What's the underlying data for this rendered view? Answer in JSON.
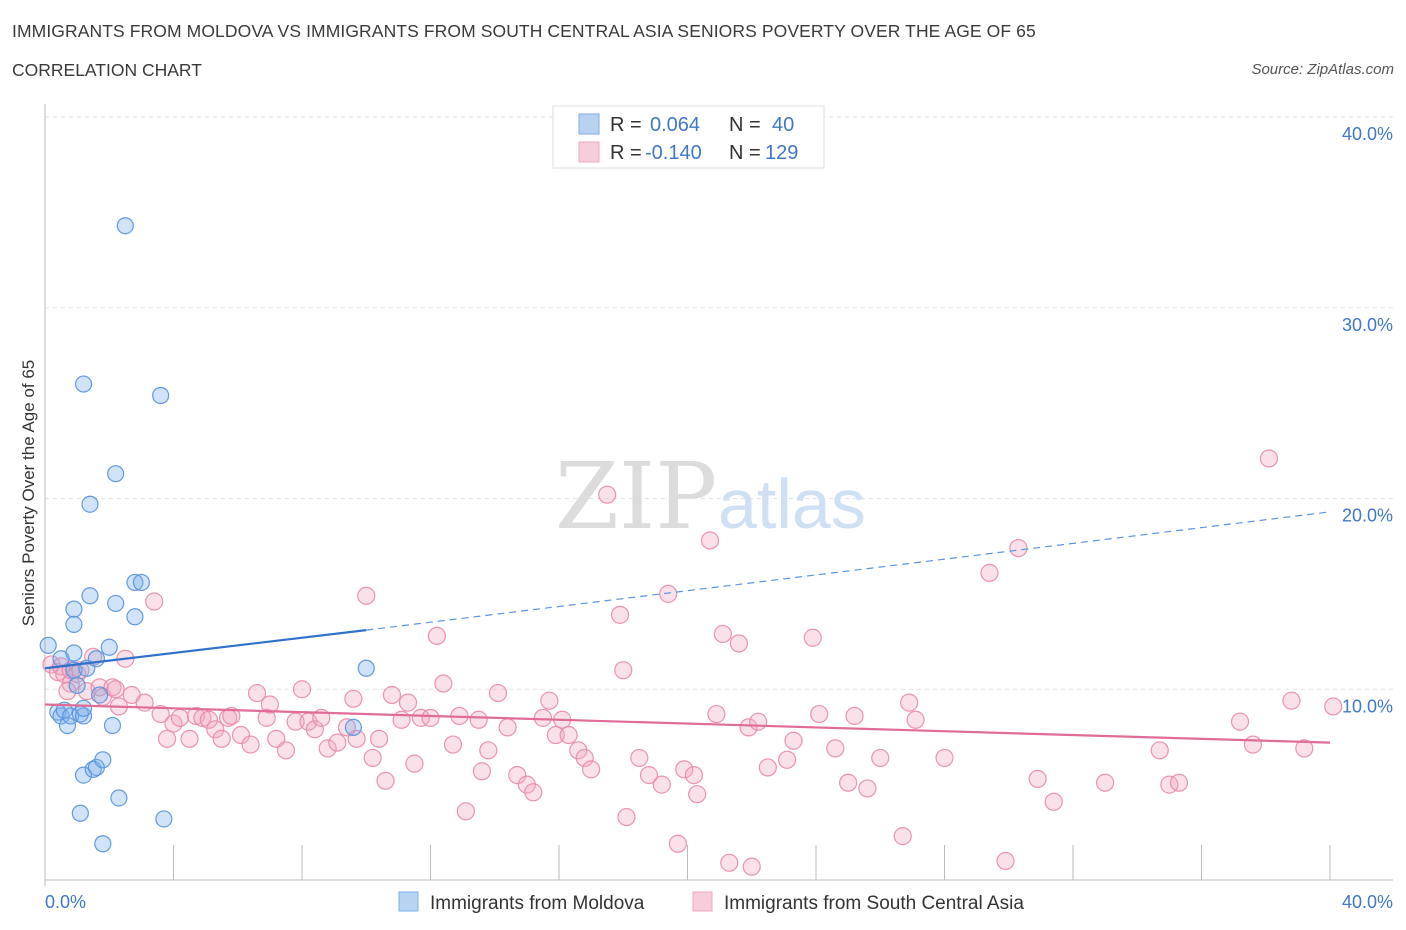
{
  "header": {
    "title": "IMMIGRANTS FROM MOLDOVA VS IMMIGRANTS FROM SOUTH CENTRAL ASIA SENIORS POVERTY OVER THE AGE OF 65",
    "subtitle": "CORRELATION CHART",
    "source": "Source: ZipAtlas.com"
  },
  "watermark": {
    "zip": "ZIP",
    "atlas": "atlas"
  },
  "legend": {
    "rows": [
      {
        "r_label": "R =",
        "r_value": "0.064",
        "n_label": "N =",
        "n_value": "40"
      },
      {
        "r_label": "R =",
        "r_value": "-0.140",
        "n_label": "N =",
        "n_value": "129"
      }
    ]
  },
  "chart_data": {
    "type": "scatter",
    "title": "IMMIGRANTS FROM MOLDOVA VS IMMIGRANTS FROM SOUTH CENTRAL ASIA SENIORS POVERTY OVER THE AGE OF 65",
    "ylabel": "Seniors Poverty Over the Age of 65",
    "xlabel": "",
    "xlim": [
      0,
      40
    ],
    "ylim": [
      0,
      40
    ],
    "x_tick_labels": [
      "0.0%",
      "40.0%"
    ],
    "y_tick_labels": [
      "10.0%",
      "20.0%",
      "30.0%",
      "40.0%"
    ],
    "y_ticks": [
      10,
      20,
      30,
      40
    ],
    "grid": true,
    "legend_position": "top-center",
    "series": [
      {
        "name": "Immigrants from Moldova",
        "color": "#7aaeea",
        "stroke": "#5b95dc",
        "r": 0.064,
        "n": 40,
        "trend": {
          "x0": 0,
          "y0": 11.1,
          "x1": 10,
          "y1": 13.1,
          "dashed_to_x": 40,
          "dashed_to_y": 19.3
        },
        "points": [
          [
            0.4,
            8.8
          ],
          [
            0.5,
            8.6
          ],
          [
            0.6,
            8.9
          ],
          [
            0.5,
            11.6
          ],
          [
            0.7,
            8.1
          ],
          [
            0.8,
            8.6
          ],
          [
            0.9,
            14.2
          ],
          [
            0.9,
            13.4
          ],
          [
            1.0,
            10.2
          ],
          [
            0.9,
            11.9
          ],
          [
            0.9,
            11.0
          ],
          [
            1.1,
            8.7
          ],
          [
            1.2,
            8.6
          ],
          [
            1.2,
            9.0
          ],
          [
            1.3,
            11.1
          ],
          [
            1.1,
            3.5
          ],
          [
            1.2,
            5.5
          ],
          [
            1.5,
            5.8
          ],
          [
            1.6,
            5.9
          ],
          [
            1.6,
            11.6
          ],
          [
            1.7,
            9.7
          ],
          [
            1.8,
            6.3
          ],
          [
            1.8,
            1.9
          ],
          [
            2.0,
            12.2
          ],
          [
            2.1,
            8.1
          ],
          [
            2.2,
            14.5
          ],
          [
            2.2,
            21.3
          ],
          [
            2.3,
            4.3
          ],
          [
            1.4,
            14.9
          ],
          [
            1.4,
            19.7
          ],
          [
            1.2,
            26.0
          ],
          [
            2.5,
            34.3
          ],
          [
            2.8,
            15.6
          ],
          [
            3.0,
            15.6
          ],
          [
            2.8,
            13.8
          ],
          [
            3.6,
            25.4
          ],
          [
            3.7,
            3.2
          ],
          [
            0.1,
            12.3
          ],
          [
            9.6,
            8.0
          ],
          [
            10.0,
            11.1
          ]
        ]
      },
      {
        "name": "Immigrants from South Central Asia",
        "color": "#f2a6c0",
        "stroke": "#e888aa",
        "r": -0.14,
        "n": 129,
        "trend": {
          "x0": 0,
          "y0": 9.2,
          "x1": 40,
          "y1": 7.2
        },
        "points": [
          [
            0.2,
            11.3
          ],
          [
            0.4,
            10.9
          ],
          [
            0.5,
            11.2
          ],
          [
            0.6,
            10.8
          ],
          [
            0.8,
            10.3
          ],
          [
            0.8,
            11.0
          ],
          [
            1.0,
            10.8
          ],
          [
            1.1,
            11.0
          ],
          [
            1.3,
            9.9
          ],
          [
            1.5,
            11.7
          ],
          [
            1.7,
            10.1
          ],
          [
            1.8,
            9.6
          ],
          [
            2.1,
            10.1
          ],
          [
            2.2,
            10.0
          ],
          [
            2.3,
            9.1
          ],
          [
            2.5,
            11.6
          ],
          [
            2.7,
            9.7
          ],
          [
            3.1,
            9.3
          ],
          [
            3.4,
            14.6
          ],
          [
            3.6,
            8.7
          ],
          [
            3.8,
            7.4
          ],
          [
            4.0,
            8.2
          ],
          [
            4.2,
            8.5
          ],
          [
            4.5,
            7.4
          ],
          [
            4.7,
            8.6
          ],
          [
            4.9,
            8.5
          ],
          [
            5.1,
            8.4
          ],
          [
            5.3,
            7.9
          ],
          [
            5.5,
            7.4
          ],
          [
            5.7,
            8.5
          ],
          [
            5.8,
            8.6
          ],
          [
            6.1,
            7.6
          ],
          [
            6.4,
            7.1
          ],
          [
            6.6,
            9.8
          ],
          [
            6.9,
            8.5
          ],
          [
            7.0,
            9.2
          ],
          [
            7.2,
            7.4
          ],
          [
            7.5,
            6.8
          ],
          [
            7.8,
            8.3
          ],
          [
            8.0,
            10.0
          ],
          [
            8.2,
            8.3
          ],
          [
            8.4,
            7.9
          ],
          [
            8.6,
            8.5
          ],
          [
            8.8,
            6.9
          ],
          [
            9.1,
            7.2
          ],
          [
            9.4,
            8.0
          ],
          [
            9.6,
            9.5
          ],
          [
            9.7,
            7.4
          ],
          [
            10.0,
            14.9
          ],
          [
            10.2,
            6.4
          ],
          [
            10.4,
            7.4
          ],
          [
            10.6,
            5.2
          ],
          [
            10.8,
            9.7
          ],
          [
            11.1,
            8.4
          ],
          [
            11.3,
            9.3
          ],
          [
            11.5,
            6.1
          ],
          [
            11.7,
            8.5
          ],
          [
            12.0,
            8.5
          ],
          [
            12.2,
            12.8
          ],
          [
            12.4,
            10.3
          ],
          [
            12.7,
            7.1
          ],
          [
            12.9,
            8.6
          ],
          [
            13.1,
            3.6
          ],
          [
            13.5,
            8.4
          ],
          [
            13.6,
            5.7
          ],
          [
            13.8,
            6.8
          ],
          [
            14.1,
            9.8
          ],
          [
            14.4,
            8.0
          ],
          [
            14.7,
            5.5
          ],
          [
            15.0,
            5.0
          ],
          [
            15.2,
            4.6
          ],
          [
            15.5,
            8.5
          ],
          [
            15.7,
            9.4
          ],
          [
            15.9,
            7.6
          ],
          [
            16.1,
            8.4
          ],
          [
            16.3,
            7.6
          ],
          [
            16.6,
            6.8
          ],
          [
            16.8,
            6.4
          ],
          [
            17.0,
            5.8
          ],
          [
            17.5,
            20.2
          ],
          [
            17.9,
            13.9
          ],
          [
            18.0,
            11.0
          ],
          [
            18.1,
            3.3
          ],
          [
            18.5,
            6.4
          ],
          [
            18.8,
            5.5
          ],
          [
            19.2,
            5.0
          ],
          [
            19.4,
            15.0
          ],
          [
            19.7,
            1.9
          ],
          [
            19.9,
            5.8
          ],
          [
            20.2,
            5.5
          ],
          [
            20.3,
            4.5
          ],
          [
            20.7,
            17.8
          ],
          [
            20.9,
            8.7
          ],
          [
            21.1,
            12.9
          ],
          [
            21.3,
            0.9
          ],
          [
            21.6,
            12.4
          ],
          [
            21.9,
            8.0
          ],
          [
            22.0,
            0.7
          ],
          [
            22.2,
            8.3
          ],
          [
            22.5,
            5.9
          ],
          [
            23.1,
            6.3
          ],
          [
            23.3,
            7.3
          ],
          [
            23.9,
            12.7
          ],
          [
            24.1,
            8.7
          ],
          [
            24.6,
            6.9
          ],
          [
            25.0,
            5.1
          ],
          [
            25.2,
            8.6
          ],
          [
            25.6,
            4.8
          ],
          [
            26.0,
            6.4
          ],
          [
            26.7,
            2.3
          ],
          [
            26.9,
            9.3
          ],
          [
            27.1,
            8.4
          ],
          [
            28.0,
            6.4
          ],
          [
            29.4,
            16.1
          ],
          [
            30.3,
            17.4
          ],
          [
            29.9,
            1.0
          ],
          [
            30.9,
            5.3
          ],
          [
            31.4,
            4.1
          ],
          [
            33.0,
            5.1
          ],
          [
            34.7,
            6.8
          ],
          [
            35.0,
            5.0
          ],
          [
            35.3,
            5.1
          ],
          [
            37.2,
            8.3
          ],
          [
            37.6,
            7.1
          ],
          [
            38.1,
            22.1
          ],
          [
            38.8,
            9.4
          ],
          [
            39.2,
            6.9
          ],
          [
            40.1,
            9.1
          ],
          [
            0.7,
            9.9
          ]
        ]
      }
    ]
  },
  "bottom_legend": [
    {
      "label": "Immigrants from Moldova"
    },
    {
      "label": "Immigrants from South Central Asia"
    }
  ]
}
